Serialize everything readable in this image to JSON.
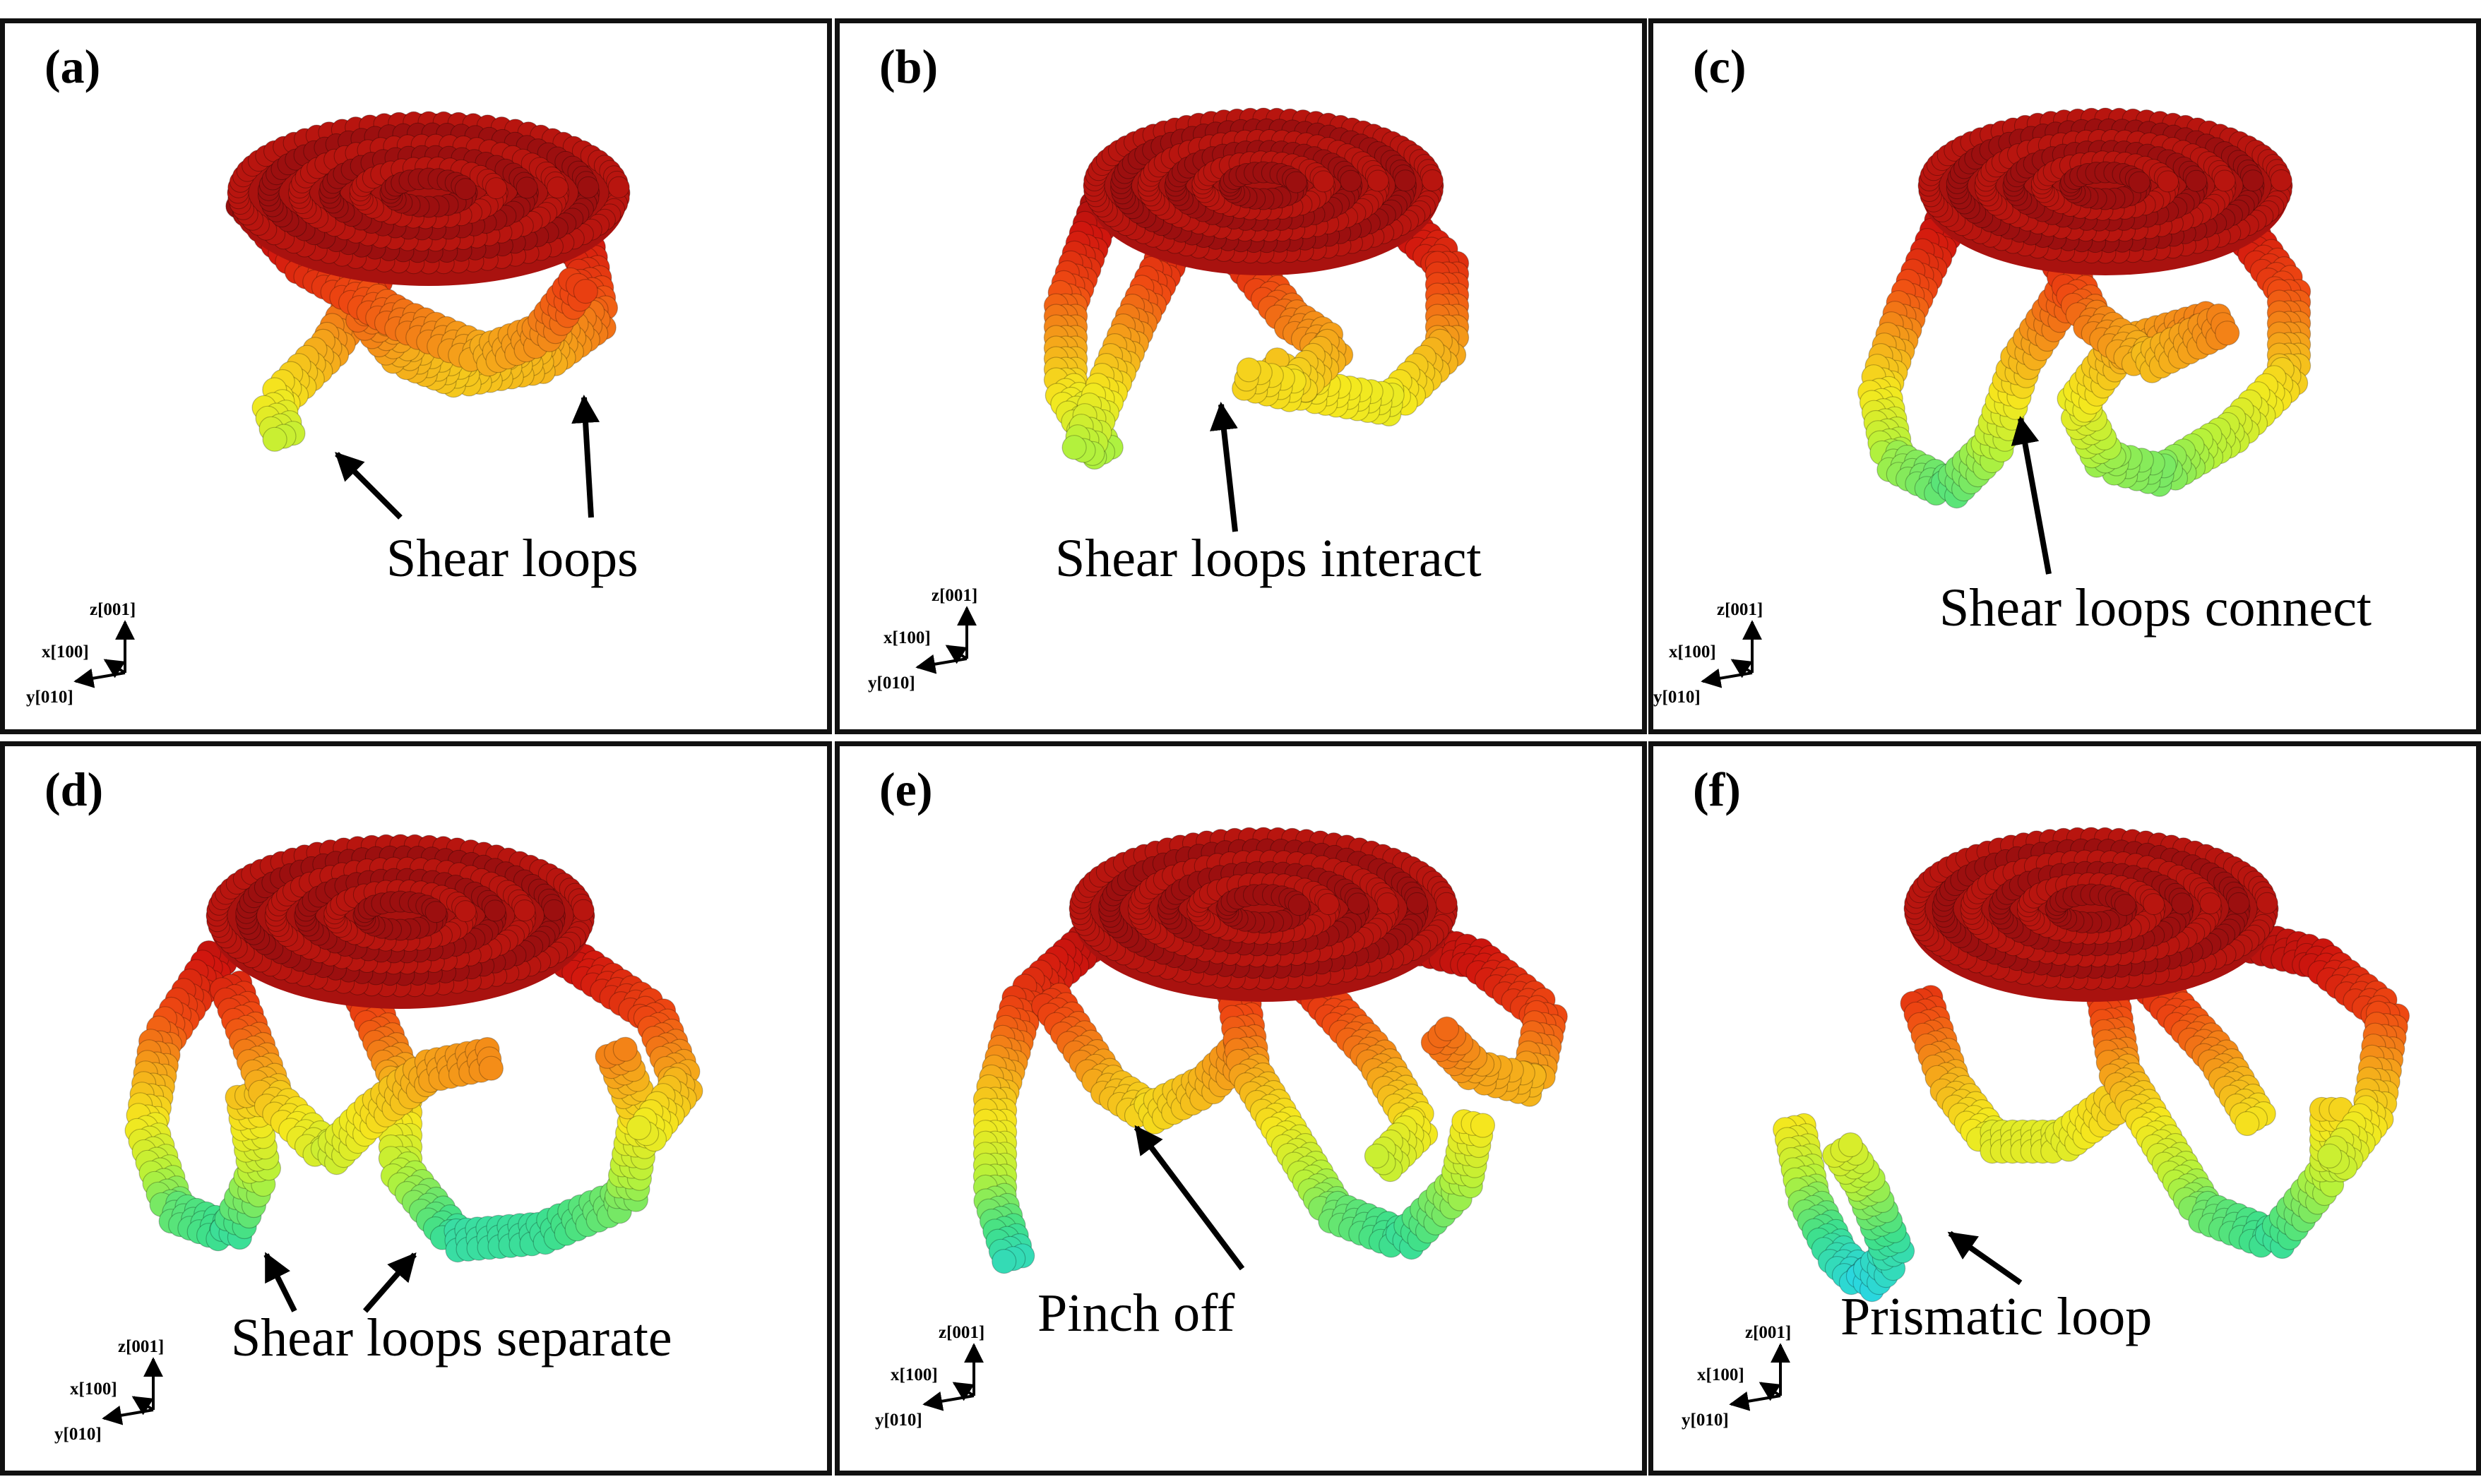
{
  "panels": [
    {
      "label": "(a)",
      "annotation": "Shear loops"
    },
    {
      "label": "(b)",
      "annotation": "Shear loops interact"
    },
    {
      "label": "(c)",
      "annotation": "Shear loops connect"
    },
    {
      "label": "(d)",
      "annotation": "Shear loops separate"
    },
    {
      "label": "(e)",
      "annotation": "Pinch off"
    },
    {
      "label": "(f)",
      "annotation": "Prismatic loop"
    }
  ],
  "axes": {
    "z": "z[001]",
    "x": "x[100]",
    "y": "y[010]"
  },
  "colors": {
    "colormap": [
      "#1f2fd6",
      "#1e90ff",
      "#28d6e6",
      "#3fe08a",
      "#b7f23a",
      "#f5e81e",
      "#f5a21a",
      "#ef4a12",
      "#d1160e",
      "#8e0d0d"
    ],
    "border": "#111111",
    "arrow": "#000000"
  }
}
